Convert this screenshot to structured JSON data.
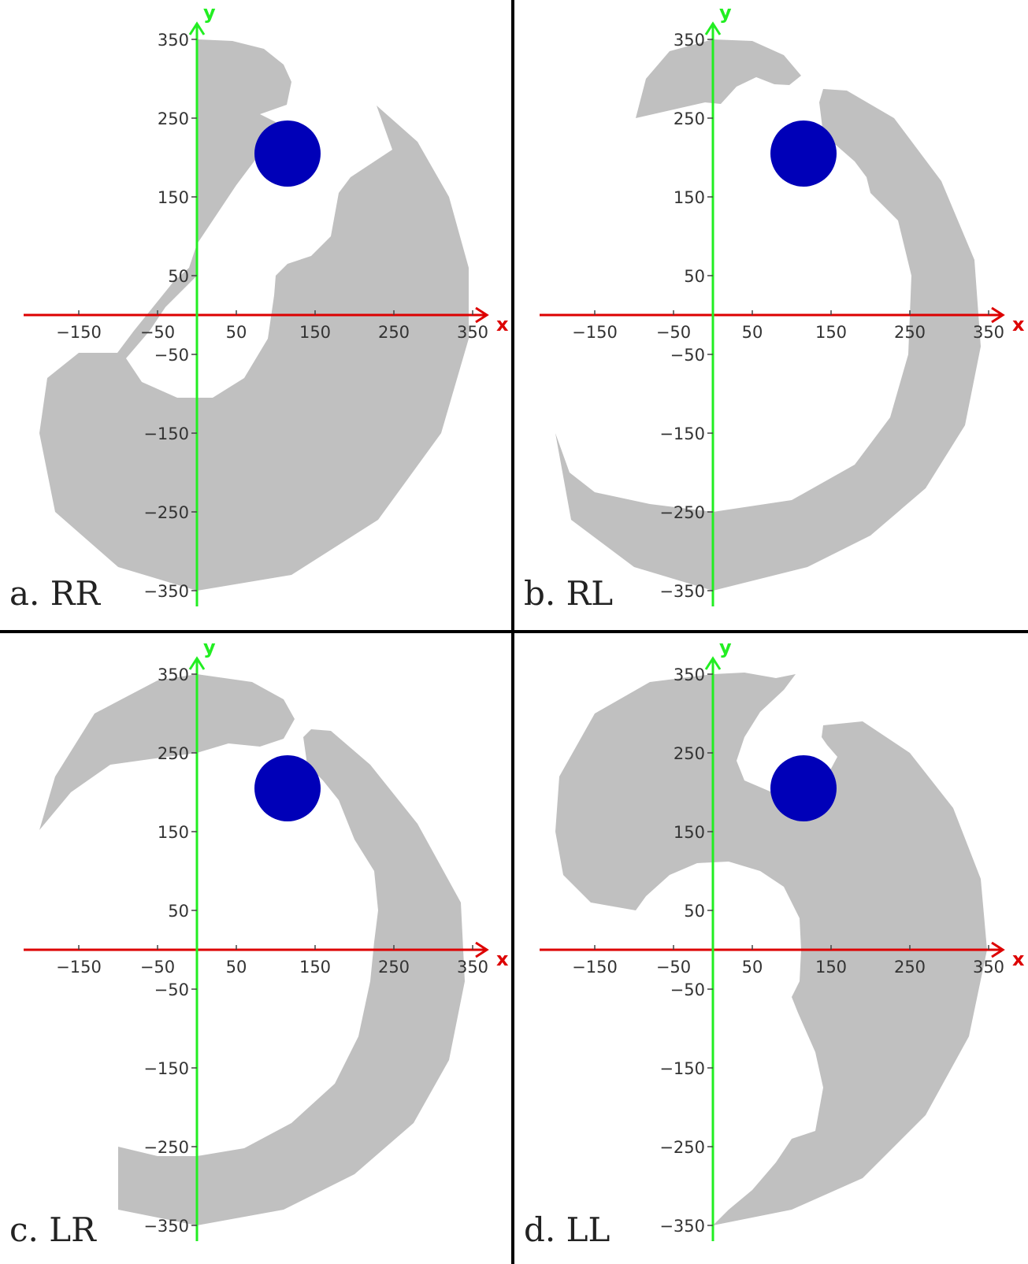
{
  "colors": {
    "region": "#c0c0c0",
    "obstacle": "#0000b8",
    "x_axis": "#dd0000",
    "y_axis": "#22ee22",
    "divider": "#000000",
    "text": "#333333"
  },
  "axes": {
    "x_name": "x",
    "y_name": "y",
    "x_ticks": [
      -150,
      -50,
      50,
      150,
      250,
      350
    ],
    "y_ticks": [
      350,
      250,
      150,
      50,
      -50,
      -150,
      -250,
      -350
    ],
    "x_tick_labels": [
      "−150",
      "−50",
      "50",
      "150",
      "250",
      "350"
    ],
    "y_tick_labels": [
      "350",
      "250",
      "150",
      "50",
      "−50",
      "−150",
      "−250",
      "−350"
    ]
  },
  "obstacle": {
    "cx": 115,
    "cy": 205,
    "r": 42
  },
  "panels": [
    {
      "id": "a",
      "label": "a.  RR",
      "shapes": [
        [
          [
            0,
            350
          ],
          [
            45,
            348
          ],
          [
            85,
            338
          ],
          [
            110,
            318
          ],
          [
            120,
            296
          ],
          [
            114,
            267
          ],
          [
            80,
            255
          ],
          [
            100,
            245
          ],
          [
            100,
            222
          ],
          [
            80,
            205
          ],
          [
            65,
            185
          ],
          [
            50,
            165
          ],
          [
            0,
            90
          ],
          [
            -10,
            60
          ],
          [
            -30,
            42
          ],
          [
            -80,
            -20
          ],
          [
            -101,
            -48
          ],
          [
            -150,
            -48
          ],
          [
            -190,
            -80
          ],
          [
            -200,
            -150
          ],
          [
            -180,
            -250
          ],
          [
            -100,
            -320
          ],
          [
            0,
            -350
          ],
          [
            120,
            -330
          ],
          [
            230,
            -260
          ],
          [
            310,
            -150
          ],
          [
            345,
            -30
          ],
          [
            345,
            60
          ],
          [
            320,
            150
          ],
          [
            280,
            220
          ],
          [
            228,
            266
          ],
          [
            248,
            210
          ],
          [
            195,
            175
          ],
          [
            180,
            155
          ],
          [
            170,
            100
          ],
          [
            145,
            75
          ],
          [
            115,
            65
          ],
          [
            100,
            50
          ],
          [
            98,
            25
          ],
          [
            90,
            -30
          ],
          [
            60,
            -80
          ],
          [
            20,
            -105
          ],
          [
            -25,
            -105
          ],
          [
            -70,
            -85
          ],
          [
            -90,
            -55
          ],
          [
            -60,
            -20
          ],
          [
            -40,
            10
          ],
          [
            -10,
            40
          ],
          [
            0,
            50
          ],
          [
            0,
            350
          ]
        ]
      ]
    },
    {
      "id": "b",
      "label": "b.  RL",
      "shapes": [
        [
          [
            -98,
            250
          ],
          [
            -85,
            300
          ],
          [
            -55,
            335
          ],
          [
            0,
            350
          ],
          [
            50,
            348
          ],
          [
            90,
            330
          ],
          [
            112,
            304
          ],
          [
            97,
            292
          ],
          [
            78,
            293
          ],
          [
            55,
            302
          ],
          [
            30,
            290
          ],
          [
            10,
            268
          ],
          [
            -10,
            270
          ],
          [
            -98,
            250
          ]
        ],
        [
          [
            135,
            270
          ],
          [
            140,
            287
          ],
          [
            170,
            285
          ],
          [
            230,
            250
          ],
          [
            290,
            170
          ],
          [
            332,
            70
          ],
          [
            340,
            -40
          ],
          [
            320,
            -140
          ],
          [
            270,
            -220
          ],
          [
            200,
            -280
          ],
          [
            120,
            -320
          ],
          [
            0,
            -350
          ],
          [
            -100,
            -320
          ],
          [
            -180,
            -260
          ],
          [
            -200,
            -150
          ],
          [
            -182,
            -200
          ],
          [
            -150,
            -225
          ],
          [
            -80,
            -240
          ],
          [
            0,
            -250
          ],
          [
            100,
            -235
          ],
          [
            180,
            -190
          ],
          [
            225,
            -130
          ],
          [
            248,
            -50
          ],
          [
            252,
            50
          ],
          [
            235,
            120
          ],
          [
            200,
            155
          ],
          [
            195,
            175
          ],
          [
            180,
            195
          ],
          [
            140,
            230
          ],
          [
            135,
            270
          ]
        ]
      ]
    },
    {
      "id": "c",
      "label": "c.  LR",
      "shapes": [
        [
          [
            -200,
            152
          ],
          [
            -180,
            220
          ],
          [
            -130,
            300
          ],
          [
            -50,
            342
          ],
          [
            0,
            350
          ],
          [
            70,
            340
          ],
          [
            110,
            318
          ],
          [
            124,
            293
          ],
          [
            110,
            268
          ],
          [
            80,
            258
          ],
          [
            40,
            262
          ],
          [
            0,
            250
          ],
          [
            -60,
            242
          ],
          [
            -110,
            235
          ],
          [
            -160,
            200
          ],
          [
            -200,
            152
          ]
        ],
        [
          [
            135,
            270
          ],
          [
            145,
            280
          ],
          [
            170,
            278
          ],
          [
            220,
            235
          ],
          [
            280,
            160
          ],
          [
            335,
            60
          ],
          [
            340,
            -40
          ],
          [
            320,
            -140
          ],
          [
            275,
            -220
          ],
          [
            200,
            -285
          ],
          [
            110,
            -330
          ],
          [
            0,
            -350
          ],
          [
            -100,
            -330
          ],
          [
            -100,
            -250
          ],
          [
            -50,
            -262
          ],
          [
            0,
            -262
          ],
          [
            60,
            -252
          ],
          [
            120,
            -220
          ],
          [
            175,
            -170
          ],
          [
            205,
            -110
          ],
          [
            220,
            -40
          ],
          [
            225,
            10
          ],
          [
            230,
            50
          ],
          [
            225,
            100
          ],
          [
            200,
            140
          ],
          [
            190,
            165
          ],
          [
            180,
            190
          ],
          [
            160,
            215
          ],
          [
            140,
            235
          ],
          [
            135,
            270
          ]
        ]
      ]
    },
    {
      "id": "d",
      "label": "d.  LL",
      "shapes": [
        [
          [
            105,
            350
          ],
          [
            80,
            345
          ],
          [
            40,
            352
          ],
          [
            0,
            350
          ],
          [
            -80,
            340
          ],
          [
            -150,
            300
          ],
          [
            -195,
            220
          ],
          [
            -200,
            150
          ],
          [
            -190,
            95
          ],
          [
            -155,
            60
          ],
          [
            -98,
            50
          ],
          [
            -85,
            68
          ],
          [
            -55,
            95
          ],
          [
            -20,
            110
          ],
          [
            20,
            112
          ],
          [
            60,
            100
          ],
          [
            90,
            80
          ],
          [
            110,
            40
          ],
          [
            112,
            0
          ],
          [
            110,
            -40
          ],
          [
            100,
            -60
          ],
          [
            108,
            -80
          ],
          [
            130,
            -130
          ],
          [
            140,
            -175
          ],
          [
            130,
            -230
          ],
          [
            100,
            -240
          ],
          [
            80,
            -270
          ],
          [
            50,
            -305
          ],
          [
            20,
            -330
          ],
          [
            0,
            -350
          ],
          [
            100,
            -330
          ],
          [
            190,
            -290
          ],
          [
            270,
            -210
          ],
          [
            325,
            -110
          ],
          [
            348,
            0
          ],
          [
            340,
            90
          ],
          [
            305,
            180
          ],
          [
            250,
            250
          ],
          [
            190,
            290
          ],
          [
            140,
            285
          ],
          [
            138,
            270
          ],
          [
            145,
            260
          ],
          [
            158,
            245
          ],
          [
            150,
            230
          ],
          [
            115,
            205
          ],
          [
            75,
            200
          ],
          [
            40,
            215
          ],
          [
            30,
            240
          ],
          [
            40,
            270
          ],
          [
            60,
            302
          ],
          [
            90,
            330
          ],
          [
            105,
            350
          ]
        ]
      ]
    }
  ]
}
